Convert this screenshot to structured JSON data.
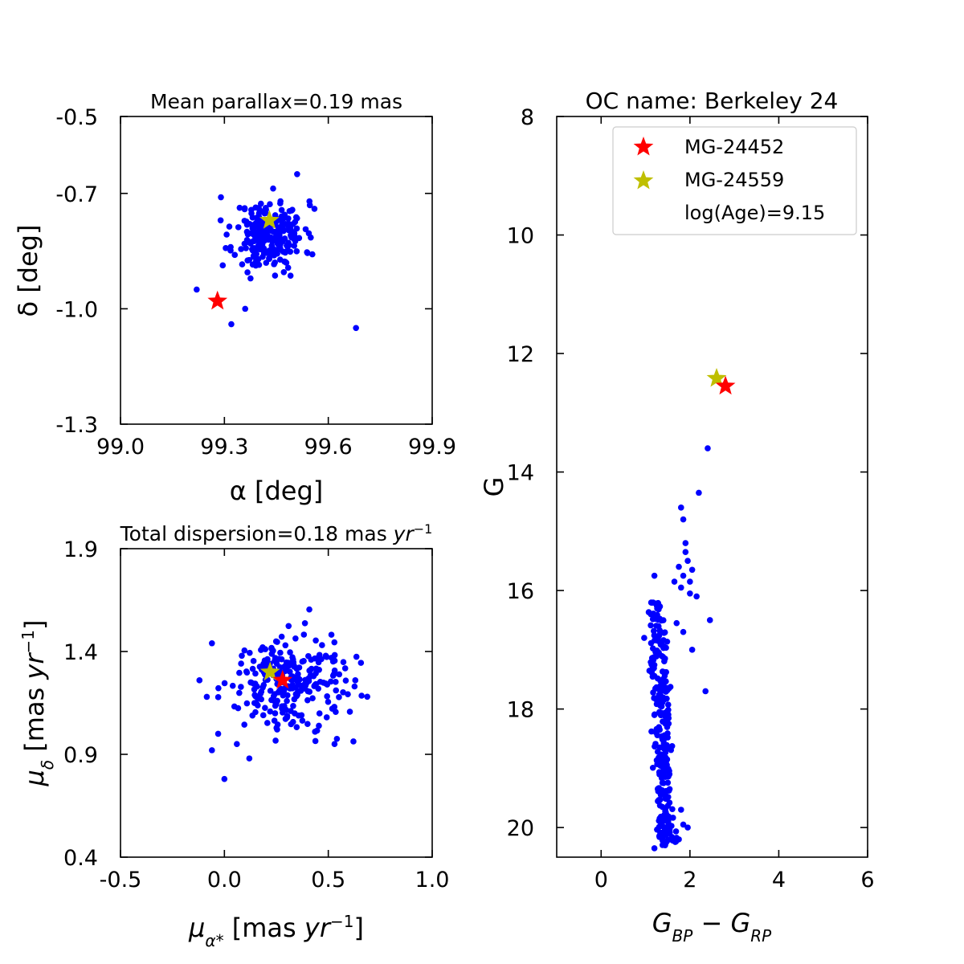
{
  "figure": {
    "background": "#ffffff"
  },
  "chart_data": [
    {
      "id": "radec",
      "type": "scatter",
      "title": "Mean parallax=0.19 mas",
      "xlabel": "α [deg]",
      "ylabel": "δ [deg]",
      "xlim": [
        99.0,
        99.9
      ],
      "ylim": [
        -1.3,
        -0.5
      ],
      "xticks": [
        99.0,
        99.3,
        99.6,
        99.9
      ],
      "xticklabels": [
        "99.0",
        "99.3",
        "99.6",
        "99.9"
      ],
      "yticks": [
        -0.5,
        -0.7,
        -1.0,
        -1.3
      ],
      "yticklabels": [
        "-0.5",
        "-0.7",
        "-1.0",
        "-1.3"
      ],
      "member_color": "#0000ff",
      "cluster_center": [
        99.43,
        -0.81
      ],
      "cluster_spread": [
        0.05,
        0.045
      ],
      "cluster_count": 240,
      "outliers": [
        [
          99.22,
          -0.95
        ],
        [
          99.32,
          -1.04
        ],
        [
          99.68,
          -1.05
        ],
        [
          99.29,
          -0.71
        ],
        [
          99.51,
          -0.65
        ],
        [
          99.56,
          -0.74
        ],
        [
          99.36,
          -1.0
        ]
      ],
      "stars": [
        {
          "label": "MG-24452",
          "x": 99.28,
          "y": -0.98,
          "color": "#ff0000"
        },
        {
          "label": "MG-24559",
          "x": 99.43,
          "y": -0.77,
          "color": "#bfbf00"
        }
      ]
    },
    {
      "id": "pm",
      "type": "scatter",
      "title": "Total dispersion=0.18 mas yr⁻¹",
      "xlabel": "μα* [mas yr⁻¹]",
      "ylabel": "μδ [mas yr⁻¹]",
      "xlim": [
        -0.5,
        1.0
      ],
      "ylim": [
        0.4,
        1.9
      ],
      "xticks": [
        -0.5,
        0.0,
        0.5,
        1.0
      ],
      "xticklabels": [
        "-0.5",
        "0.0",
        "0.5",
        "1.0"
      ],
      "yticks": [
        0.4,
        0.9,
        1.4,
        1.9
      ],
      "yticklabels": [
        "0.4",
        "0.9",
        "1.4",
        "1.9"
      ],
      "member_color": "#0000ff",
      "cluster_center": [
        0.29,
        1.25
      ],
      "cluster_spread": [
        0.14,
        0.11
      ],
      "cluster_count": 260,
      "outliers": [
        [
          -0.12,
          1.26
        ],
        [
          -0.06,
          1.44
        ],
        [
          -0.03,
          1.0
        ],
        [
          -0.06,
          0.92
        ],
        [
          0.0,
          0.78
        ],
        [
          0.12,
          0.88
        ],
        [
          0.06,
          0.95
        ],
        [
          0.63,
          1.26
        ],
        [
          0.53,
          0.95
        ]
      ],
      "stars": [
        {
          "label": "MG-24559",
          "x": 0.22,
          "y": 1.3,
          "color": "#bfbf00"
        },
        {
          "label": "MG-24452",
          "x": 0.28,
          "y": 1.26,
          "color": "#ff0000"
        }
      ]
    },
    {
      "id": "cmd",
      "type": "scatter",
      "title": "OC name: Berkeley 24",
      "xlabel": "GBP − GRP",
      "ylabel": "G",
      "xlim": [
        -1.0,
        6.0
      ],
      "ylim": [
        20.5,
        8.0
      ],
      "y_inverted": true,
      "xticks": [
        0,
        2,
        4,
        6
      ],
      "xticklabels": [
        "0",
        "2",
        "4",
        "6"
      ],
      "yticks": [
        8,
        10,
        12,
        14,
        16,
        18,
        20
      ],
      "yticklabels": [
        "8",
        "10",
        "12",
        "14",
        "16",
        "18",
        "20"
      ],
      "member_color": "#0000ff",
      "main_sequence": {
        "count": 290,
        "g_range": [
          16.2,
          20.3
        ],
        "color_center": 1.35,
        "color_spread": 0.1,
        "color_slope": 0.06
      },
      "giant_branch": [
        [
          1.2,
          15.75
        ],
        [
          1.8,
          14.6
        ],
        [
          1.85,
          14.8
        ],
        [
          2.2,
          14.35
        ],
        [
          1.9,
          15.2
        ],
        [
          1.95,
          15.5
        ],
        [
          1.75,
          15.6
        ],
        [
          1.85,
          15.75
        ],
        [
          2.0,
          16.05
        ],
        [
          2.15,
          16.1
        ],
        [
          1.7,
          16.55
        ],
        [
          1.85,
          16.7
        ],
        [
          2.05,
          17.0
        ],
        [
          2.35,
          17.7
        ],
        [
          2.45,
          16.5
        ],
        [
          1.65,
          15.85
        ],
        [
          1.8,
          15.95
        ],
        [
          2.05,
          15.65
        ],
        [
          1.9,
          15.35
        ],
        [
          2.0,
          15.85
        ]
      ],
      "outliers": [
        [
          2.4,
          13.6
        ],
        [
          1.2,
          20.35
        ],
        [
          1.75,
          20.2
        ],
        [
          1.95,
          20.0
        ],
        [
          1.85,
          19.95
        ],
        [
          1.8,
          19.7
        ],
        [
          0.97,
          16.8
        ]
      ],
      "stars": [
        {
          "label": "MG-24559",
          "x": 2.6,
          "y": 12.42,
          "color": "#bfbf00"
        },
        {
          "label": "MG-24452",
          "x": 2.8,
          "y": 12.55,
          "color": "#ff0000"
        }
      ],
      "legend": {
        "position": "top-right",
        "entries": [
          "MG-24452",
          "MG-24559",
          "log(Age)=9.15"
        ]
      }
    }
  ]
}
